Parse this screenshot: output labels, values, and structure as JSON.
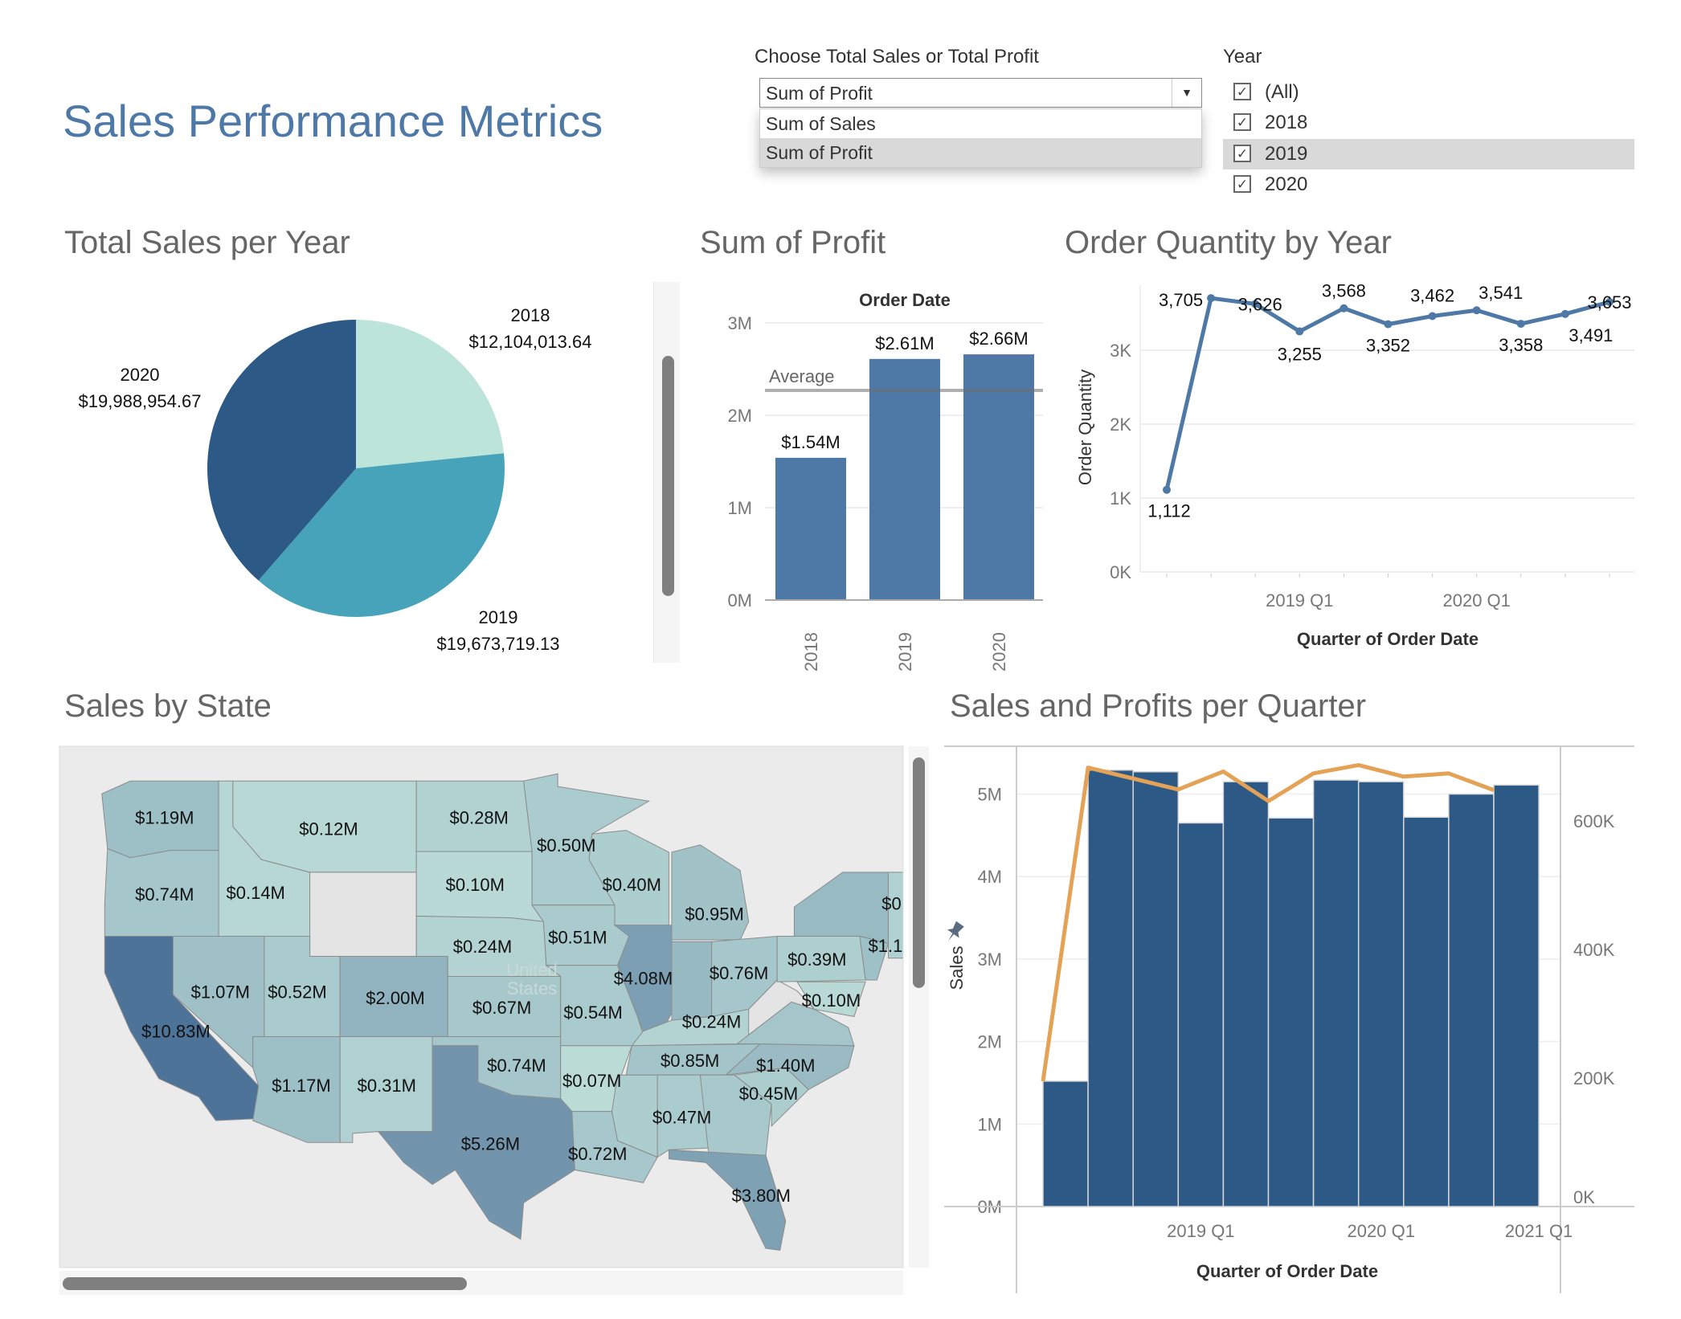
{
  "header": {
    "title": "Sales Performance Metrics"
  },
  "measure_selector": {
    "label": "Choose Total Sales or Total Profit",
    "selected": "Sum of Profit",
    "options": [
      "Sum of Sales",
      "Sum of Profit"
    ],
    "arrow_icon": "triangle-down"
  },
  "year_filter": {
    "label": "Year",
    "items": [
      {
        "label": "(All)",
        "checked": true
      },
      {
        "label": "2018",
        "checked": true
      },
      {
        "label": "2019",
        "checked": true,
        "hovered": true
      },
      {
        "label": "2020",
        "checked": true
      }
    ],
    "check_glyph": "✓"
  },
  "chart_data": [
    {
      "type": "pie",
      "title": "Total Sales per Year",
      "slices": [
        {
          "label": "2018",
          "value": 12104013.64,
          "value_label": "$12,104,013.64",
          "color": "#bce4d8"
        },
        {
          "label": "2019",
          "value": 19673719.13,
          "value_label": "$19,673,719.13",
          "color": "#47a3b9"
        },
        {
          "label": "2020",
          "value": 19988954.67,
          "value_label": "$19,988,954.67",
          "color": "#2c5985"
        }
      ]
    },
    {
      "type": "bar",
      "title": "Sum of Profit",
      "xlabel": "Order Date",
      "categories": [
        "2018",
        "2019",
        "2020"
      ],
      "values": [
        1540000,
        2610000,
        2660000
      ],
      "value_labels": [
        "$1.54M",
        "$2.61M",
        "$2.66M"
      ],
      "ylim": [
        0,
        3100000
      ],
      "yticks": [
        {
          "value": 0,
          "label": "0M"
        },
        {
          "value": 1000000,
          "label": "1M"
        },
        {
          "value": 2000000,
          "label": "2M"
        },
        {
          "value": 3000000,
          "label": "3M"
        }
      ],
      "reference_line": {
        "label": "Average",
        "value": 2270000
      },
      "color": "#4e79a7",
      "grid": true
    },
    {
      "type": "line",
      "title": "Order Quantity by Year",
      "xlabel": "Quarter of Order Date",
      "ylabel": "Order Quantity",
      "x": [
        "2018 Q2",
        "2018 Q3",
        "2018 Q4",
        "2019 Q1",
        "2019 Q2",
        "2019 Q3",
        "2019 Q4",
        "2020 Q1",
        "2020 Q2",
        "2020 Q3",
        "2020 Q4"
      ],
      "values": [
        1112,
        3705,
        3626,
        3255,
        3568,
        3352,
        3462,
        3541,
        3358,
        3491,
        3653
      ],
      "value_labels": [
        "1,112",
        "3,705",
        "3,626",
        "3,255",
        "3,568",
        "3,352",
        "3,462",
        "3,541",
        "3,358",
        "3,491",
        "3,653"
      ],
      "xticks": [
        {
          "x": "2019 Q1",
          "label": "2019 Q1"
        },
        {
          "x": "2020 Q1",
          "label": "2020 Q1"
        }
      ],
      "yticks": [
        {
          "value": 0,
          "label": "0K"
        },
        {
          "value": 1000,
          "label": "1K"
        },
        {
          "value": 2000,
          "label": "2K"
        },
        {
          "value": 3000,
          "label": "3K"
        }
      ],
      "ylim": [
        0,
        3900
      ],
      "color": "#4e79a7",
      "grid": true
    },
    {
      "type": "bar+line",
      "title": "Sales and Profits per Quarter",
      "xlabel": "Quarter of Order Date",
      "ylabel": "Sales",
      "x": [
        "2018 Q2",
        "2018 Q3",
        "2018 Q4",
        "2019 Q1",
        "2019 Q2",
        "2019 Q3",
        "2019 Q4",
        "2020 Q1",
        "2020 Q2",
        "2020 Q3",
        "2020 Q4"
      ],
      "series": [
        {
          "kind": "bar",
          "axis": "left",
          "color": "#2d5986",
          "values": [
            1520000,
            5290000,
            5270000,
            4650000,
            5150000,
            4710000,
            5170000,
            5150000,
            4720000,
            5000000,
            5110000
          ]
        },
        {
          "kind": "line",
          "axis": "right",
          "color": "#e3a256",
          "values": [
            195000,
            683000,
            666000,
            649000,
            677000,
            631000,
            674000,
            687000,
            669000,
            674000,
            648000
          ]
        }
      ],
      "left_ylim": [
        0,
        5600000
      ],
      "right_ylim": [
        0,
        700000
      ],
      "left_yticks": [
        {
          "value": 0,
          "label": "0M"
        },
        {
          "value": 1000000,
          "label": "1M"
        },
        {
          "value": 2000000,
          "label": "2M"
        },
        {
          "value": 3000000,
          "label": "3M"
        },
        {
          "value": 4000000,
          "label": "4M"
        },
        {
          "value": 5000000,
          "label": "5M"
        }
      ],
      "right_yticks": [
        {
          "value": 0,
          "label": "0K"
        },
        {
          "value": 200000,
          "label": "200K"
        },
        {
          "value": 400000,
          "label": "400K"
        },
        {
          "value": 600000,
          "label": "600K"
        }
      ],
      "xticks": [
        {
          "x": "2019 Q1",
          "label": "2019 Q1"
        },
        {
          "x": "2020 Q1",
          "label": "2020 Q1"
        },
        {
          "x": "2021 Q1",
          "label": "2021 Q1"
        }
      ],
      "pin_icon": "pin",
      "grid": true
    }
  ],
  "sales_by_state": {
    "title": "Sales by State",
    "watermark": [
      "United",
      "States"
    ],
    "labels": [
      "$1.19M",
      "$0.74M",
      "$10.83M",
      "$0.14M",
      "$0.12M",
      "$1.07M",
      "$0.52M",
      "$2.00M",
      "$1.17M",
      "$0.31M",
      "$0.28M",
      "$0.10M",
      "$0.24M",
      "$0.67M",
      "$0.74M",
      "$5.26M",
      "$0.50M",
      "$0.51M",
      "$0.54M",
      "$0.07M",
      "$0.72M",
      "$0.40M",
      "$4.08M",
      "$0.95M",
      "$0.76M",
      "$0.24M",
      "$0.85M",
      "$0.47M",
      "$3.80M",
      "$0.45M",
      "$1.40M",
      "$0.10M",
      "$0.39M",
      "$1.1",
      "$0."
    ],
    "color_low": "#c4e4dc",
    "color_high": "#4e7399"
  }
}
